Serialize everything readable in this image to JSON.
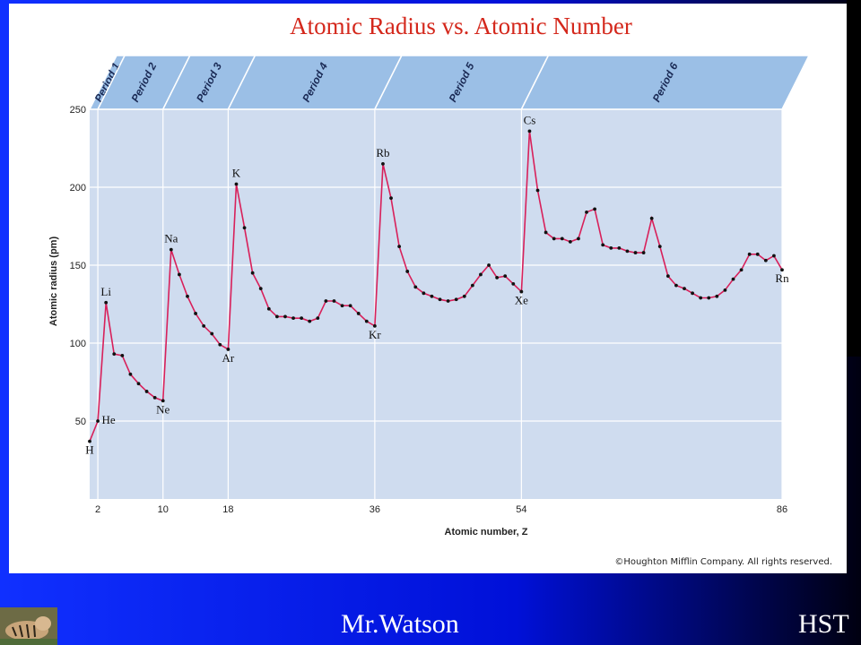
{
  "slide": {
    "title": "Atomic Radius vs. Atomic Number",
    "footer_name": "Mr.Watson",
    "footer_org": "HST",
    "copyright": "©Houghton Mifflin Company. All rights reserved.",
    "colors": {
      "background": "#0000ff",
      "plot": "#cfdcef",
      "band": "#9bbfe6",
      "line": "#d8205a",
      "title": "#d4281c"
    }
  },
  "chart_data": {
    "type": "line",
    "title": "Atomic Radius vs. Atomic Number",
    "xlabel": "Atomic number, Z",
    "ylabel": "Atomic radius (pm)",
    "xlim": [
      1,
      86
    ],
    "ylim": [
      0,
      250
    ],
    "x_ticks": [
      2,
      10,
      18,
      36,
      54,
      86
    ],
    "y_ticks": [
      50,
      100,
      150,
      200,
      250
    ],
    "grid": true,
    "periods": [
      {
        "label": "Period 1",
        "start": 1,
        "end": 2
      },
      {
        "label": "Period 2",
        "start": 2,
        "end": 10
      },
      {
        "label": "Period 3",
        "start": 10,
        "end": 18
      },
      {
        "label": "Period 4",
        "start": 18,
        "end": 36
      },
      {
        "label": "Period 5",
        "start": 36,
        "end": 54
      },
      {
        "label": "Period 6",
        "start": 54,
        "end": 86
      }
    ],
    "series": [
      {
        "x": [
          1,
          2,
          3,
          4,
          5,
          6,
          7,
          8,
          9,
          10,
          11,
          12,
          13,
          14,
          15,
          16,
          17,
          18,
          19,
          20,
          21,
          22,
          23,
          24,
          25,
          26,
          27,
          28,
          29,
          30,
          31,
          32,
          33,
          34,
          35,
          36,
          37,
          38,
          39,
          40,
          41,
          42,
          43,
          44,
          45,
          46,
          47,
          48,
          49,
          50,
          51,
          52,
          53,
          54,
          55,
          56,
          57,
          58,
          59,
          60,
          61,
          62,
          63,
          64,
          65,
          66,
          67,
          68,
          69,
          70,
          71,
          72,
          73,
          74,
          75,
          76,
          77,
          78,
          79,
          80,
          81,
          82,
          83,
          84,
          85,
          86
        ],
        "y": [
          37,
          50,
          126,
          93,
          92,
          80,
          74,
          69,
          65,
          63,
          160,
          144,
          130,
          119,
          111,
          106,
          99,
          96,
          202,
          174,
          145,
          135,
          122,
          117,
          117,
          116,
          116,
          114,
          116,
          127,
          127,
          124,
          124,
          119,
          114,
          111,
          215,
          193,
          162,
          146,
          136,
          132,
          130,
          128,
          127,
          128,
          130,
          137,
          144,
          150,
          142,
          143,
          138,
          133,
          236,
          198,
          171,
          167,
          167,
          165,
          167,
          184,
          186,
          163,
          161,
          161,
          159,
          158,
          158,
          180,
          162,
          143,
          137,
          135,
          132,
          129,
          129,
          130,
          134,
          141,
          147,
          157,
          157,
          153,
          156,
          147
        ]
      }
    ],
    "point_labels": [
      {
        "x": 1,
        "text": "H"
      },
      {
        "x": 2,
        "text": "He"
      },
      {
        "x": 3,
        "text": "Li"
      },
      {
        "x": 10,
        "text": "Ne"
      },
      {
        "x": 11,
        "text": "Na"
      },
      {
        "x": 18,
        "text": "Ar"
      },
      {
        "x": 19,
        "text": "K"
      },
      {
        "x": 36,
        "text": "Kr"
      },
      {
        "x": 37,
        "text": "Rb"
      },
      {
        "x": 54,
        "text": "Xe"
      },
      {
        "x": 55,
        "text": "Cs"
      },
      {
        "x": 86,
        "text": "Rn"
      }
    ]
  }
}
